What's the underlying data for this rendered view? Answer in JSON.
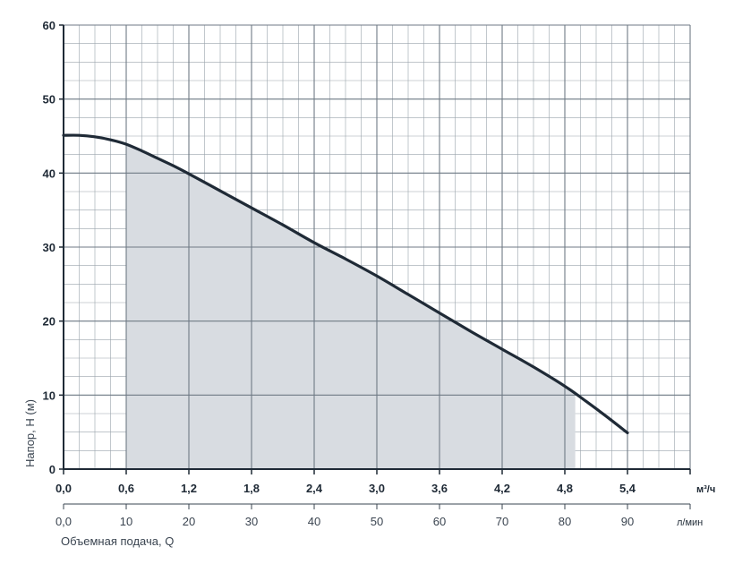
{
  "chart_data": {
    "type": "area",
    "ylabel": "Напор, Н (м)",
    "xlabel": "Объемная подача, Q",
    "x_unit_primary": "м³/ч",
    "x_unit_secondary": "л/мин",
    "xlim": [
      0,
      6.0
    ],
    "ylim": [
      0,
      60
    ],
    "grid": true,
    "y_ticks": [
      "0",
      "10",
      "20",
      "30",
      "40",
      "50",
      "60"
    ],
    "x_ticks_primary": [
      "0,0",
      "0,6",
      "1,2",
      "1,8",
      "2,4",
      "3,0",
      "3,6",
      "4,2",
      "4,8",
      "5,4"
    ],
    "x_ticks_secondary": [
      "0,0",
      "10",
      "20",
      "30",
      "40",
      "50",
      "60",
      "70",
      "80",
      "90"
    ],
    "series": [
      {
        "x": [
          0.0,
          0.15,
          0.3,
          0.45,
          0.6,
          0.75,
          0.9,
          1.05,
          1.2,
          1.5,
          1.8,
          2.1,
          2.4,
          2.7,
          3.0,
          3.3,
          3.6,
          3.9,
          4.2,
          4.5,
          4.8,
          5.0,
          5.2,
          5.4
        ],
        "y": [
          45.1,
          45.1,
          44.9,
          44.5,
          43.9,
          43.0,
          42.0,
          41.0,
          39.9,
          37.6,
          35.3,
          33.0,
          30.6,
          28.4,
          26.1,
          23.6,
          21.1,
          18.6,
          16.2,
          13.8,
          11.2,
          9.2,
          7.1,
          4.9
        ],
        "color": "#1f2a36"
      }
    ],
    "operating_range": {
      "x_min": 0.6,
      "x_max": 4.9,
      "fill": "#d8dce1"
    }
  }
}
